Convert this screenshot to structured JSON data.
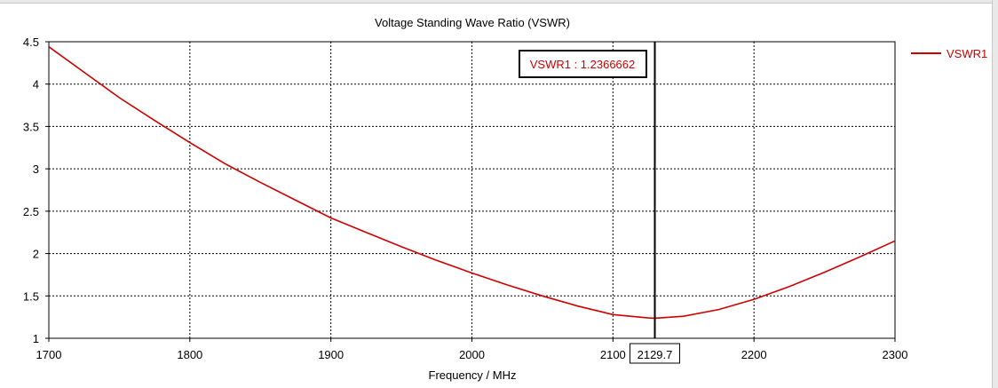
{
  "chart_data": {
    "type": "line",
    "title": "Voltage Standing Wave Ratio (VSWR)",
    "xlabel": "Frequency / MHz",
    "ylabel": "",
    "xlim": [
      1700,
      2300
    ],
    "ylim": [
      1,
      4.5
    ],
    "x_ticks": [
      1700,
      1800,
      1900,
      2000,
      2100,
      2200,
      2300
    ],
    "y_ticks": [
      1,
      1.5,
      2,
      2.5,
      3,
      3.5,
      4,
      4.5
    ],
    "grid": true,
    "legend_position": "top-right",
    "series": [
      {
        "name": "VSWR1",
        "color": "#cc0000",
        "x": [
          1700,
          1725,
          1750,
          1775,
          1800,
          1825,
          1850,
          1875,
          1900,
          1925,
          1950,
          1975,
          2000,
          2025,
          2050,
          2075,
          2100,
          2125,
          2129.7,
          2150,
          2175,
          2200,
          2225,
          2250,
          2275,
          2300
        ],
        "y": [
          4.44,
          4.14,
          3.84,
          3.57,
          3.31,
          3.06,
          2.84,
          2.63,
          2.42,
          2.25,
          2.08,
          1.92,
          1.77,
          1.63,
          1.5,
          1.38,
          1.28,
          1.24,
          1.2366662,
          1.26,
          1.34,
          1.46,
          1.61,
          1.78,
          1.96,
          2.15
        ]
      }
    ],
    "marker": {
      "x": 2129.7,
      "x_label": "2129.7",
      "readout": "VSWR1 : 1.2366662"
    }
  }
}
